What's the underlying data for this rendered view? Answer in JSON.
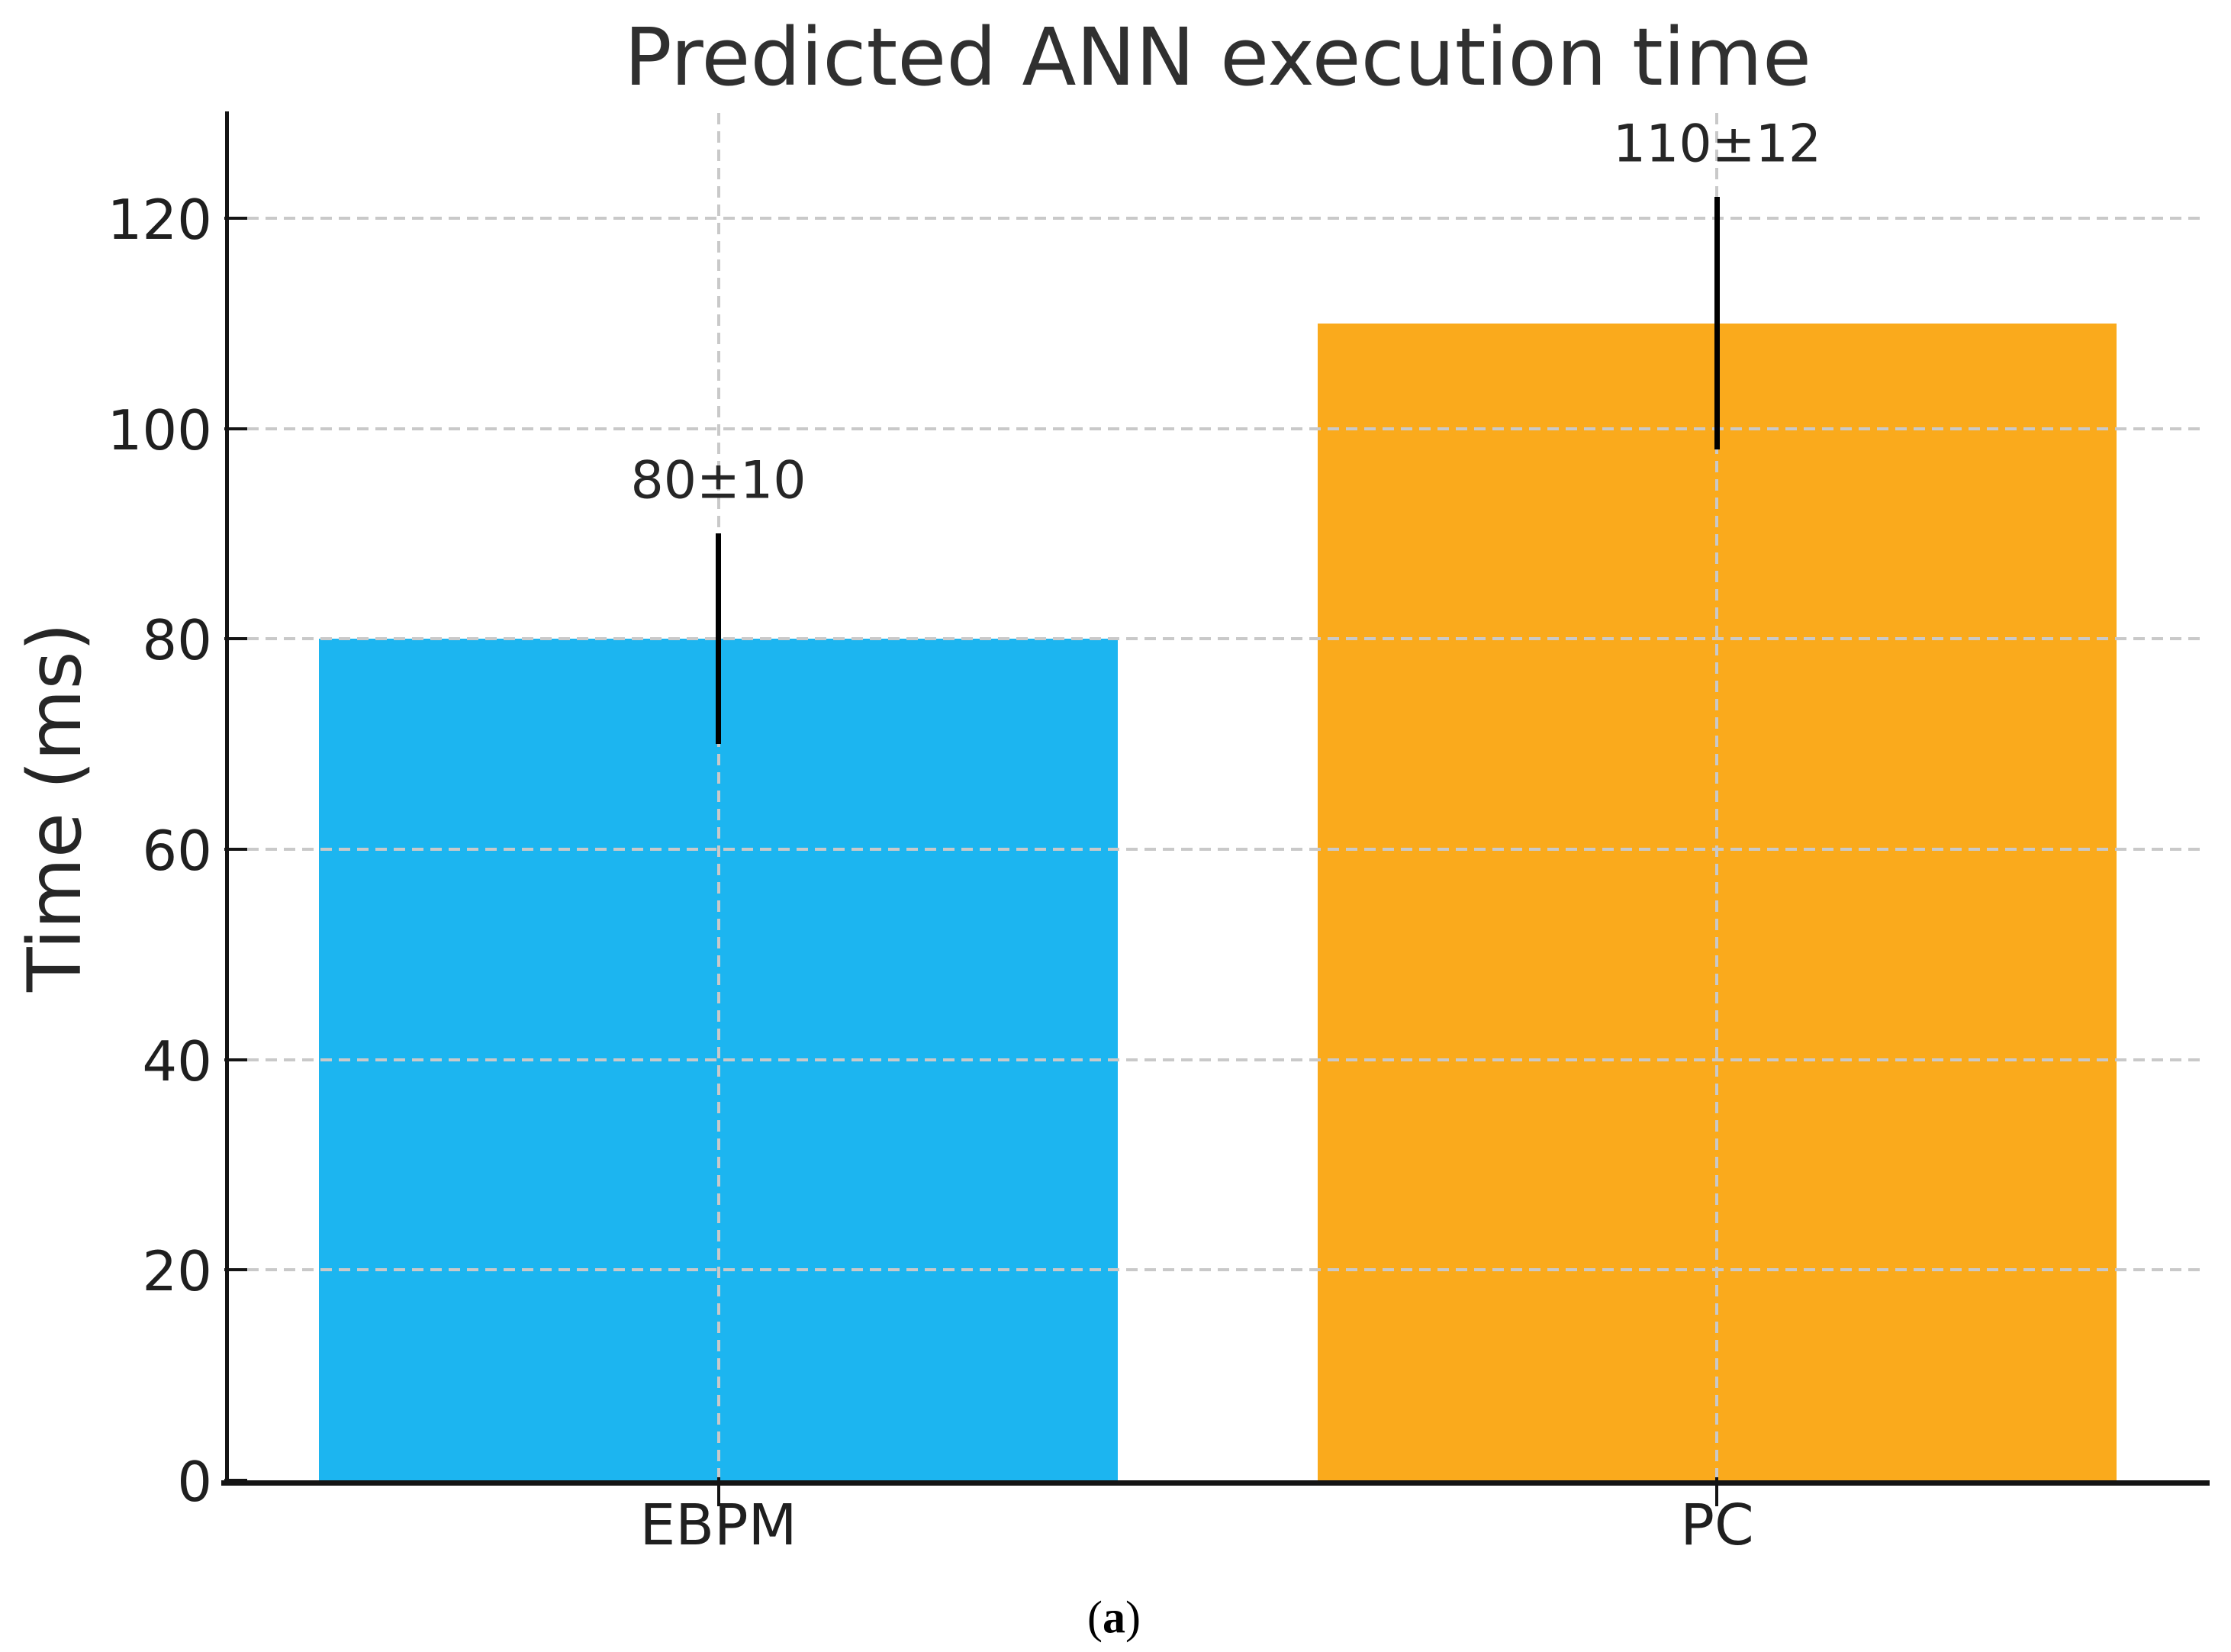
{
  "chart_data": {
    "type": "bar",
    "title": "Predicted ANN execution time",
    "xlabel": "",
    "ylabel": "Time (ms)",
    "categories": [
      "EBPM",
      "PC"
    ],
    "values": [
      80,
      110
    ],
    "errors": [
      10,
      12
    ],
    "bar_labels": [
      "80±10",
      "110±12"
    ],
    "bar_colors": [
      "#1CB5F0",
      "#FAAA1C"
    ],
    "error_bar_color": "#000000",
    "yticks": [
      0,
      20,
      40,
      60,
      80,
      100,
      120
    ],
    "ylim": [
      0,
      130
    ],
    "grid": "dashed gray horizontal lines at y ticks and vertical lines at bar centers, drawn above bars",
    "legend": "none"
  },
  "caption": {
    "open": "(",
    "letter": "a",
    "close": ")"
  }
}
